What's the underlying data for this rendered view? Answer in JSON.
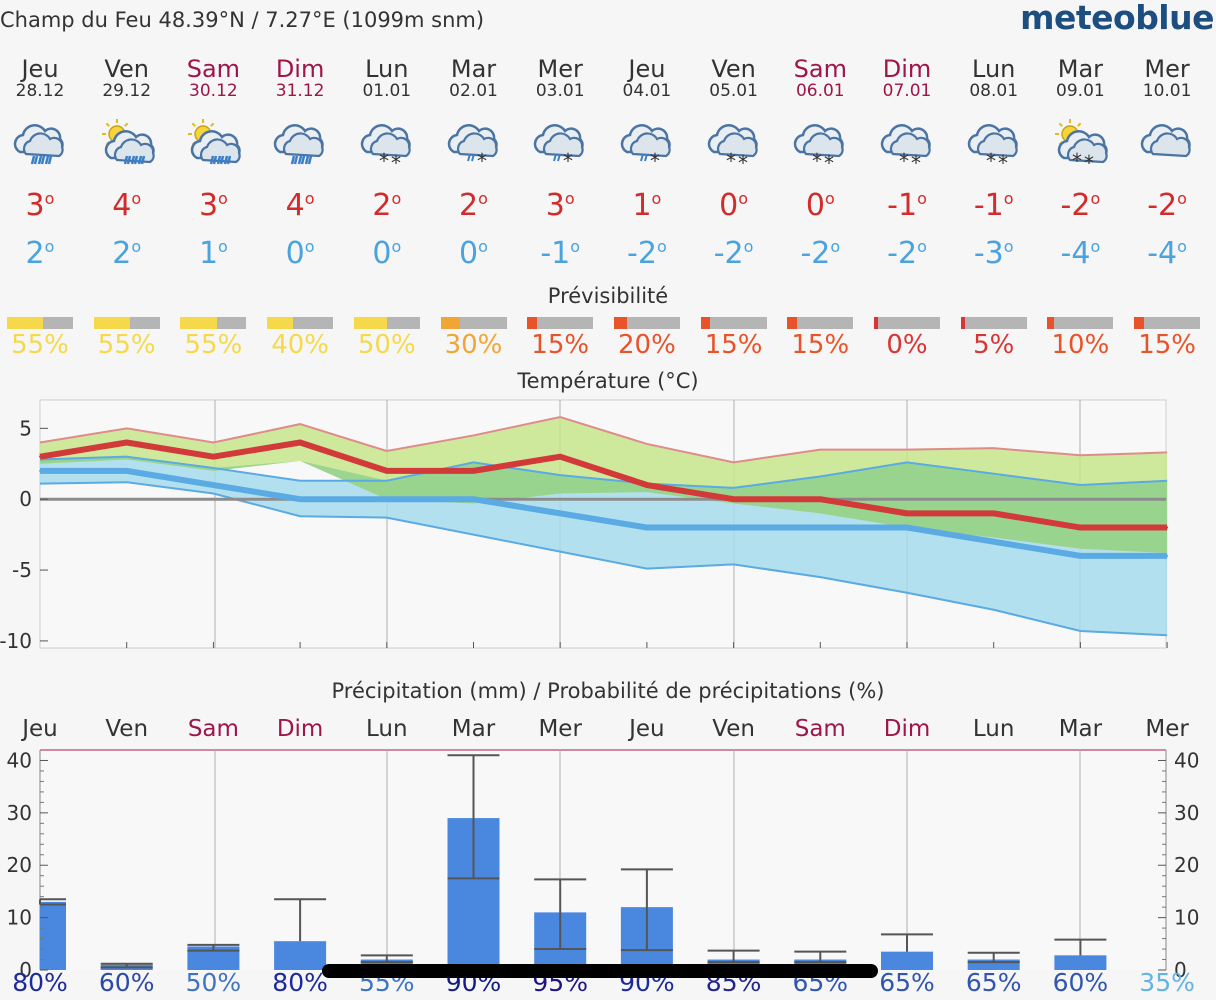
{
  "header": {
    "location": "Champ du Feu  48.39°N / 7.27°E (1099m snm)",
    "brand": "meteoblue"
  },
  "days": [
    {
      "label": "Jeu",
      "date": "28.12",
      "weekend": false,
      "icon": "cloud-rain-icon",
      "temp_max": "3",
      "temp_min": "2"
    },
    {
      "label": "Ven",
      "date": "29.12",
      "weekend": false,
      "icon": "sun-cloud-rain-icon",
      "temp_max": "4",
      "temp_min": "2"
    },
    {
      "label": "Sam",
      "date": "30.12",
      "weekend": true,
      "icon": "sun-cloud-rain-icon",
      "temp_max": "3",
      "temp_min": "1"
    },
    {
      "label": "Dim",
      "date": "31.12",
      "weekend": true,
      "icon": "cloud-rain-icon",
      "temp_max": "4",
      "temp_min": "0"
    },
    {
      "label": "Lun",
      "date": "01.01",
      "weekend": false,
      "icon": "cloud-snow-icon",
      "temp_max": "2",
      "temp_min": "0"
    },
    {
      "label": "Mar",
      "date": "02.01",
      "weekend": false,
      "icon": "cloud-sleet-icon",
      "temp_max": "2",
      "temp_min": "0"
    },
    {
      "label": "Mer",
      "date": "03.01",
      "weekend": false,
      "icon": "cloud-sleet-icon",
      "temp_max": "3",
      "temp_min": "-1"
    },
    {
      "label": "Jeu",
      "date": "04.01",
      "weekend": false,
      "icon": "cloud-sleet-icon",
      "temp_max": "1",
      "temp_min": "-2"
    },
    {
      "label": "Ven",
      "date": "05.01",
      "weekend": false,
      "icon": "cloud-snow-icon",
      "temp_max": "0",
      "temp_min": "-2"
    },
    {
      "label": "Sam",
      "date": "06.01",
      "weekend": true,
      "icon": "cloud-snow-icon",
      "temp_max": "0",
      "temp_min": "-2"
    },
    {
      "label": "Dim",
      "date": "07.01",
      "weekend": true,
      "icon": "cloud-snow-icon",
      "temp_max": "-1",
      "temp_min": "-2"
    },
    {
      "label": "Lun",
      "date": "08.01",
      "weekend": false,
      "icon": "cloud-snow-icon",
      "temp_max": "-1",
      "temp_min": "-3"
    },
    {
      "label": "Mar",
      "date": "09.01",
      "weekend": false,
      "icon": "sun-cloud-snow-icon",
      "temp_max": "-2",
      "temp_min": "-4"
    },
    {
      "label": "Mer",
      "date": "10.01",
      "weekend": false,
      "icon": "cloud-icon",
      "temp_max": "-2",
      "temp_min": "-4"
    }
  ],
  "predictability": {
    "title": "Prévisibilité",
    "values": [
      {
        "percent": "55%",
        "fraction": 0.55,
        "color": "#f5d94a"
      },
      {
        "percent": "55%",
        "fraction": 0.55,
        "color": "#f5d94a"
      },
      {
        "percent": "55%",
        "fraction": 0.55,
        "color": "#f5d94a"
      },
      {
        "percent": "40%",
        "fraction": 0.4,
        "color": "#f5d94a"
      },
      {
        "percent": "50%",
        "fraction": 0.5,
        "color": "#f5d94a"
      },
      {
        "percent": "30%",
        "fraction": 0.3,
        "color": "#f0a634"
      },
      {
        "percent": "15%",
        "fraction": 0.15,
        "color": "#e8532a"
      },
      {
        "percent": "20%",
        "fraction": 0.2,
        "color": "#e8532a"
      },
      {
        "percent": "15%",
        "fraction": 0.15,
        "color": "#e8532a"
      },
      {
        "percent": "15%",
        "fraction": 0.15,
        "color": "#e8532a"
      },
      {
        "percent": "0%",
        "fraction": 0.0,
        "color": "#d93535"
      },
      {
        "percent": "5%",
        "fraction": 0.05,
        "color": "#d93535"
      },
      {
        "percent": "10%",
        "fraction": 0.1,
        "color": "#e8532a"
      },
      {
        "percent": "15%",
        "fraction": 0.15,
        "color": "#e8532a"
      }
    ]
  },
  "chart_data": {
    "temperature": {
      "type": "line",
      "title": "Température (°C)",
      "ylim": [
        -10.5,
        7
      ],
      "yticks": [
        "5",
        "0",
        "-5",
        "-10"
      ],
      "x": [
        0,
        1,
        2,
        3,
        4,
        5,
        6,
        7,
        8,
        9,
        10,
        11,
        12,
        13
      ],
      "series": [
        {
          "name": "max",
          "color": "#d23a3a",
          "values": [
            3,
            4,
            3,
            4,
            2,
            2,
            3,
            1,
            0,
            0,
            -1,
            -1,
            -2,
            -2
          ]
        },
        {
          "name": "min",
          "color": "#5aaae3",
          "values": [
            2,
            2,
            1,
            0,
            0,
            0,
            -1,
            -2,
            -2,
            -2,
            -2,
            -3,
            -4,
            -4
          ]
        }
      ],
      "max_band": {
        "upper": [
          4,
          5,
          4,
          5.3,
          3.4,
          4.5,
          5.8,
          3.9,
          2.6,
          3.5,
          3.5,
          3.6,
          3.1,
          3.3
        ],
        "lower": [
          2.5,
          2.8,
          2,
          2.7,
          0,
          -0.3,
          0.4,
          0.5,
          -0.3,
          -1,
          -2,
          -2.7,
          -3.5,
          -3.8
        ]
      },
      "min_band": {
        "upper": [
          2.8,
          3,
          2.2,
          1.3,
          1.3,
          2.6,
          1.7,
          1.1,
          0.8,
          1.6,
          2.6,
          1.8,
          1,
          1.3
        ],
        "lower": [
          1.1,
          1.2,
          0.4,
          -1.2,
          -1.3,
          -2.5,
          -3.7,
          -4.9,
          -4.6,
          -5.5,
          -6.6,
          -7.8,
          -9.3,
          -9.6
        ]
      }
    },
    "precipitation": {
      "type": "bar",
      "title": "Précipitation (mm) / Probabilité de précipitations (%)",
      "ylim": [
        0,
        42
      ],
      "yticks": [
        "0",
        "10",
        "20",
        "30",
        "40"
      ],
      "categories": [
        "Jeu",
        "Ven",
        "Sam",
        "Dim",
        "Lun",
        "Mar",
        "Mer",
        "Jeu",
        "Ven",
        "Sam",
        "Dim",
        "Lun",
        "Mar",
        "Mer"
      ],
      "weekend": [
        false,
        false,
        true,
        true,
        false,
        false,
        false,
        false,
        false,
        true,
        true,
        false,
        false,
        false
      ],
      "values": [
        13,
        1,
        4.5,
        5.5,
        2,
        29,
        11,
        12,
        2,
        2,
        3.5,
        2,
        2.8,
        0
      ],
      "low": [
        12.5,
        0.5,
        3.7,
        null,
        1.5,
        17.5,
        4,
        3.8,
        1.5,
        1.5,
        null,
        1.5,
        null,
        null
      ],
      "high": [
        13.5,
        1.2,
        4.8,
        13.5,
        2.8,
        41,
        17.3,
        19.2,
        3.7,
        3.5,
        6.8,
        3.3,
        5.8,
        null
      ],
      "probability": [
        "80%",
        "60%",
        "50%",
        "80%",
        "55%",
        "90%",
        "95%",
        "90%",
        "85%",
        "65%",
        "65%",
        "65%",
        "60%",
        "35%"
      ],
      "probability_colors": [
        "#1d2a9a",
        "#2c4aa6",
        "#3f74c2",
        "#1d2a9a",
        "#3f74c2",
        "#151b85",
        "#201580",
        "#1d2a9a",
        "#24248c",
        "#3156b0",
        "#3156b0",
        "#3156b0",
        "#3156b0",
        "#62b4e6"
      ]
    }
  }
}
